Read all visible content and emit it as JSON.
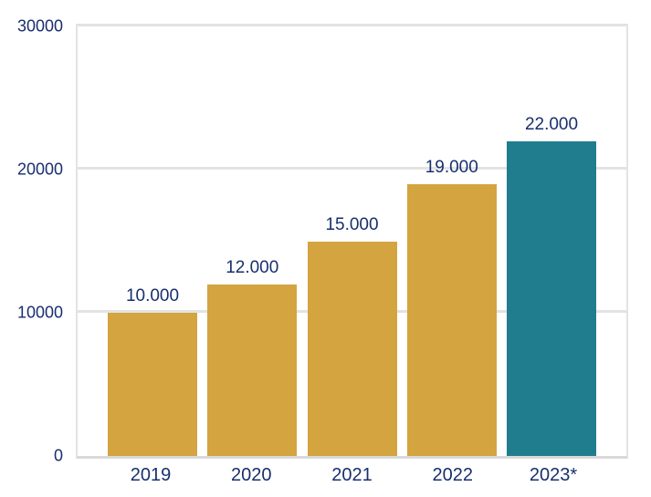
{
  "chart_data": {
    "type": "bar",
    "title": "",
    "xlabel": "",
    "ylabel": "",
    "categories": [
      "2019",
      "2020",
      "2021",
      "2022",
      "2023*"
    ],
    "values": [
      10000,
      12000,
      15000,
      19000,
      22000
    ],
    "data_labels": [
      "10.000",
      "12.000",
      "15.000",
      "19.000",
      "22.000"
    ],
    "ylim": [
      0,
      30000
    ],
    "yticks": [
      {
        "value": 0,
        "label": "0"
      },
      {
        "value": 10000,
        "label": "10000"
      },
      {
        "value": 20000,
        "label": "20000"
      },
      {
        "value": 30000,
        "label": "30000"
      }
    ],
    "grid": true,
    "legend": false,
    "bar_colors": [
      "#D3A43F",
      "#D3A43F",
      "#D3A43F",
      "#D3A43F",
      "#1F7D8E"
    ],
    "colors": {
      "bar_default": "#D3A43F",
      "bar_highlight": "#1F7D8E",
      "label_text": "#182F6E",
      "gridline": "#E3E3E3",
      "axis_line": "#D9D9D9",
      "background": "#FFFFFF"
    }
  }
}
